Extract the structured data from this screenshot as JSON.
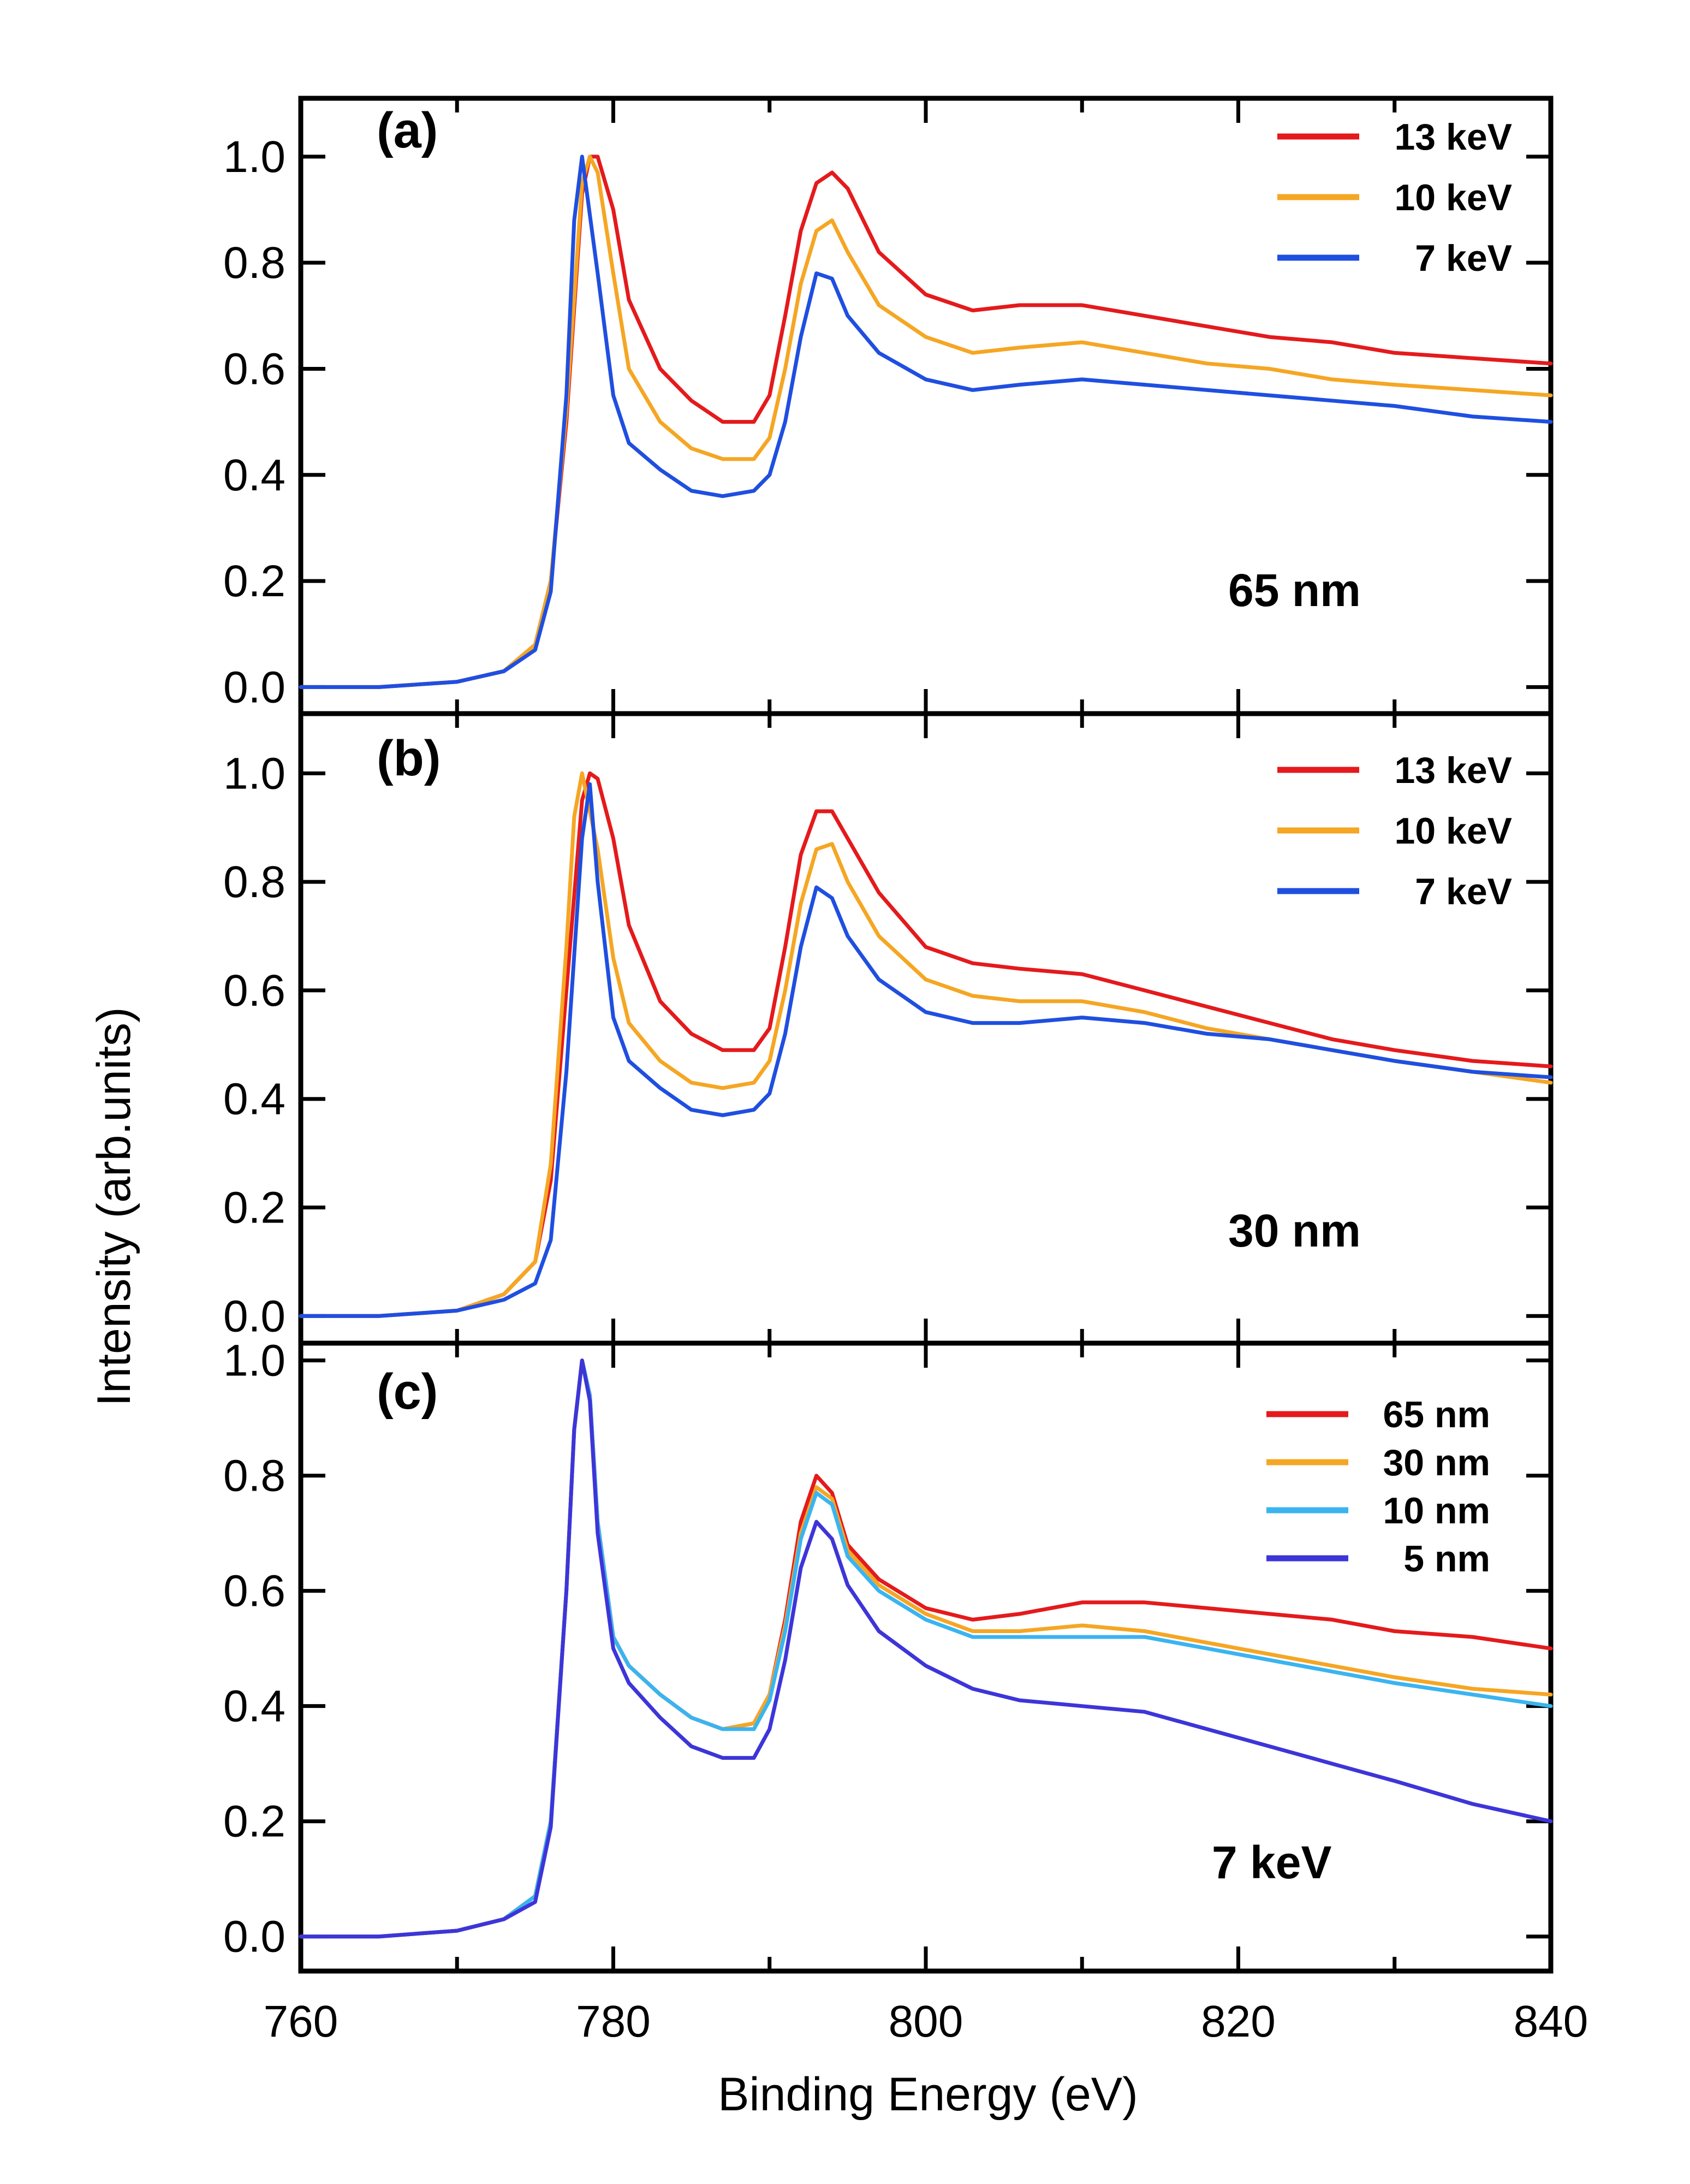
{
  "figure": {
    "ylabel": "Intensity (arb.units)",
    "xlabel": "Binding Energy (eV)",
    "xlim": [
      760,
      840
    ],
    "x_ticks": [
      "760",
      "780",
      "800",
      "820",
      "840"
    ]
  },
  "colors": {
    "red": "#e41a1c",
    "orange": "#f5a623",
    "blue": "#1f4fe0",
    "light_blue": "#3ab4f0",
    "indigo": "#3d35d8"
  },
  "chart_data": [
    {
      "type": "line",
      "panel_label": "(a)",
      "annotation": "65 nm",
      "xlabel": "Binding Energy (eV)",
      "ylabel": "Intensity (arb.units)",
      "xlim": [
        760,
        840
      ],
      "ylim": [
        -0.05,
        1.11
      ],
      "y_ticks": [
        "0.0",
        "0.2",
        "0.4",
        "0.6",
        "0.8",
        "1.0"
      ],
      "grid": false,
      "legend_position": "top-right",
      "series": [
        {
          "name": "13 keV",
          "color": "#e41a1c",
          "x": [
            760,
            765,
            770,
            773,
            775,
            776,
            777,
            778,
            778.5,
            779,
            780,
            781,
            783,
            785,
            787,
            789,
            790,
            791,
            792,
            793,
            794,
            795,
            797,
            800,
            803,
            806,
            810,
            814,
            818,
            822,
            826,
            830,
            835,
            840
          ],
          "y": [
            0,
            0,
            0.01,
            0.03,
            0.08,
            0.2,
            0.5,
            0.93,
            1.0,
            1.0,
            0.9,
            0.73,
            0.6,
            0.54,
            0.5,
            0.5,
            0.55,
            0.7,
            0.86,
            0.95,
            0.97,
            0.94,
            0.82,
            0.74,
            0.71,
            0.72,
            0.72,
            0.7,
            0.68,
            0.66,
            0.65,
            0.63,
            0.62,
            0.61
          ]
        },
        {
          "name": "10 keV",
          "color": "#f5a623",
          "x": [
            760,
            765,
            770,
            773,
            775,
            776,
            777,
            778,
            778.5,
            779,
            780,
            781,
            783,
            785,
            787,
            789,
            790,
            791,
            792,
            793,
            794,
            795,
            797,
            800,
            803,
            806,
            810,
            814,
            818,
            822,
            826,
            830,
            835,
            840
          ],
          "y": [
            0,
            0,
            0.01,
            0.03,
            0.08,
            0.2,
            0.52,
            0.95,
            1.0,
            0.97,
            0.78,
            0.6,
            0.5,
            0.45,
            0.43,
            0.43,
            0.47,
            0.6,
            0.76,
            0.86,
            0.88,
            0.82,
            0.72,
            0.66,
            0.63,
            0.64,
            0.65,
            0.63,
            0.61,
            0.6,
            0.58,
            0.57,
            0.56,
            0.55
          ]
        },
        {
          "name": "7 keV",
          "color": "#1f4fe0",
          "x": [
            760,
            765,
            770,
            773,
            775,
            776,
            777,
            777.5,
            778,
            779,
            780,
            781,
            783,
            785,
            787,
            789,
            790,
            791,
            792,
            793,
            794,
            795,
            797,
            800,
            803,
            806,
            810,
            814,
            818,
            822,
            826,
            830,
            835,
            840
          ],
          "y": [
            0,
            0,
            0.01,
            0.03,
            0.07,
            0.18,
            0.55,
            0.88,
            1.0,
            0.78,
            0.55,
            0.46,
            0.41,
            0.37,
            0.36,
            0.37,
            0.4,
            0.5,
            0.66,
            0.78,
            0.77,
            0.7,
            0.63,
            0.58,
            0.56,
            0.57,
            0.58,
            0.57,
            0.56,
            0.55,
            0.54,
            0.53,
            0.51,
            0.5
          ]
        }
      ]
    },
    {
      "type": "line",
      "panel_label": "(b)",
      "annotation": "30 nm",
      "xlabel": "Binding Energy (eV)",
      "ylabel": "Intensity (arb.units)",
      "xlim": [
        760,
        840
      ],
      "ylim": [
        -0.05,
        1.11
      ],
      "y_ticks": [
        "0.0",
        "0.2",
        "0.4",
        "0.6",
        "0.8",
        "1.0"
      ],
      "grid": false,
      "legend_position": "top-right",
      "series": [
        {
          "name": "13 keV",
          "color": "#e41a1c",
          "x": [
            760,
            765,
            770,
            773,
            775,
            776,
            777,
            778,
            778.5,
            779,
            780,
            781,
            783,
            785,
            787,
            789,
            790,
            791,
            792,
            793,
            794,
            795,
            797,
            800,
            803,
            806,
            810,
            814,
            818,
            822,
            826,
            830,
            835,
            840
          ],
          "y": [
            0,
            0,
            0.01,
            0.04,
            0.1,
            0.25,
            0.6,
            0.95,
            1.0,
            0.99,
            0.88,
            0.72,
            0.58,
            0.52,
            0.49,
            0.49,
            0.53,
            0.68,
            0.85,
            0.93,
            0.93,
            0.88,
            0.78,
            0.68,
            0.65,
            0.64,
            0.63,
            0.6,
            0.57,
            0.54,
            0.51,
            0.49,
            0.47,
            0.46
          ]
        },
        {
          "name": "10 keV",
          "color": "#f5a623",
          "x": [
            760,
            765,
            770,
            773,
            775,
            776,
            777,
            777.5,
            778,
            779,
            780,
            781,
            783,
            785,
            787,
            789,
            790,
            791,
            792,
            793,
            794,
            795,
            797,
            800,
            803,
            806,
            810,
            814,
            818,
            822,
            826,
            830,
            835,
            840
          ],
          "y": [
            0,
            0,
            0.01,
            0.04,
            0.1,
            0.28,
            0.68,
            0.92,
            1.0,
            0.86,
            0.66,
            0.54,
            0.47,
            0.43,
            0.42,
            0.43,
            0.47,
            0.6,
            0.76,
            0.86,
            0.87,
            0.8,
            0.7,
            0.62,
            0.59,
            0.58,
            0.58,
            0.56,
            0.53,
            0.51,
            0.49,
            0.47,
            0.45,
            0.43
          ]
        },
        {
          "name": "7 keV",
          "color": "#1f4fe0",
          "x": [
            760,
            765,
            770,
            773,
            775,
            776,
            777,
            778,
            778.5,
            779,
            780,
            781,
            783,
            785,
            787,
            789,
            790,
            791,
            792,
            793,
            794,
            795,
            797,
            800,
            803,
            806,
            810,
            814,
            818,
            822,
            826,
            830,
            835,
            840
          ],
          "y": [
            0,
            0,
            0.01,
            0.03,
            0.06,
            0.14,
            0.45,
            0.88,
            0.98,
            0.8,
            0.55,
            0.47,
            0.42,
            0.38,
            0.37,
            0.38,
            0.41,
            0.52,
            0.68,
            0.79,
            0.77,
            0.7,
            0.62,
            0.56,
            0.54,
            0.54,
            0.55,
            0.54,
            0.52,
            0.51,
            0.49,
            0.47,
            0.45,
            0.44
          ]
        }
      ]
    },
    {
      "type": "line",
      "panel_label": "(c)",
      "annotation": "7 keV",
      "xlabel": "Binding Energy (eV)",
      "ylabel": "Intensity (arb.units)",
      "xlim": [
        760,
        840
      ],
      "ylim": [
        -0.06,
        1.03
      ],
      "y_ticks": [
        "0.0",
        "0.2",
        "0.4",
        "0.6",
        "0.8",
        "1.0"
      ],
      "grid": false,
      "legend_position": "top-right",
      "series": [
        {
          "name": "65 nm",
          "color": "#e41a1c",
          "x": [
            760,
            765,
            770,
            773,
            775,
            776,
            777,
            777.5,
            778,
            778.5,
            779,
            780,
            781,
            783,
            785,
            787,
            789,
            790,
            791,
            792,
            793,
            794,
            795,
            797,
            800,
            803,
            806,
            810,
            814,
            818,
            822,
            826,
            830,
            835,
            840
          ],
          "y": [
            0,
            0,
            0.01,
            0.03,
            0.07,
            0.2,
            0.6,
            0.88,
            1.0,
            0.94,
            0.72,
            0.52,
            0.47,
            0.42,
            0.38,
            0.36,
            0.37,
            0.42,
            0.55,
            0.72,
            0.8,
            0.77,
            0.68,
            0.62,
            0.57,
            0.55,
            0.56,
            0.58,
            0.58,
            0.57,
            0.56,
            0.55,
            0.53,
            0.52,
            0.5
          ]
        },
        {
          "name": "30 nm",
          "color": "#f5a623",
          "x": [
            760,
            765,
            770,
            773,
            775,
            776,
            777,
            777.5,
            778,
            778.5,
            779,
            780,
            781,
            783,
            785,
            787,
            789,
            790,
            791,
            792,
            793,
            794,
            795,
            797,
            800,
            803,
            806,
            810,
            814,
            818,
            822,
            826,
            830,
            835,
            840
          ],
          "y": [
            0,
            0,
            0.01,
            0.03,
            0.07,
            0.2,
            0.6,
            0.88,
            1.0,
            0.94,
            0.72,
            0.52,
            0.47,
            0.42,
            0.38,
            0.36,
            0.37,
            0.42,
            0.54,
            0.7,
            0.78,
            0.76,
            0.67,
            0.61,
            0.56,
            0.53,
            0.53,
            0.54,
            0.53,
            0.51,
            0.49,
            0.47,
            0.45,
            0.43,
            0.42
          ]
        },
        {
          "name": "10 nm",
          "color": "#3ab4f0",
          "x": [
            760,
            765,
            770,
            773,
            775,
            776,
            777,
            777.5,
            778,
            778.5,
            779,
            780,
            781,
            783,
            785,
            787,
            789,
            790,
            791,
            792,
            793,
            794,
            795,
            797,
            800,
            803,
            806,
            810,
            814,
            818,
            822,
            826,
            830,
            835,
            840
          ],
          "y": [
            0,
            0,
            0.01,
            0.03,
            0.07,
            0.2,
            0.6,
            0.88,
            1.0,
            0.94,
            0.72,
            0.52,
            0.47,
            0.42,
            0.38,
            0.36,
            0.36,
            0.41,
            0.53,
            0.69,
            0.77,
            0.75,
            0.66,
            0.6,
            0.55,
            0.52,
            0.52,
            0.52,
            0.52,
            0.5,
            0.48,
            0.46,
            0.44,
            0.42,
            0.4
          ]
        },
        {
          "name": "5 nm",
          "color": "#3d35d8",
          "x": [
            760,
            765,
            770,
            773,
            775,
            776,
            777,
            777.5,
            778,
            778.5,
            779,
            780,
            781,
            783,
            785,
            787,
            789,
            790,
            791,
            792,
            793,
            794,
            795,
            797,
            800,
            803,
            806,
            810,
            814,
            818,
            822,
            826,
            830,
            835,
            840
          ],
          "y": [
            0,
            0,
            0.01,
            0.03,
            0.06,
            0.19,
            0.6,
            0.88,
            1.0,
            0.93,
            0.7,
            0.5,
            0.44,
            0.38,
            0.33,
            0.31,
            0.31,
            0.36,
            0.48,
            0.64,
            0.72,
            0.69,
            0.61,
            0.53,
            0.47,
            0.43,
            0.41,
            0.4,
            0.39,
            0.36,
            0.33,
            0.3,
            0.27,
            0.23,
            0.2
          ]
        }
      ]
    }
  ]
}
